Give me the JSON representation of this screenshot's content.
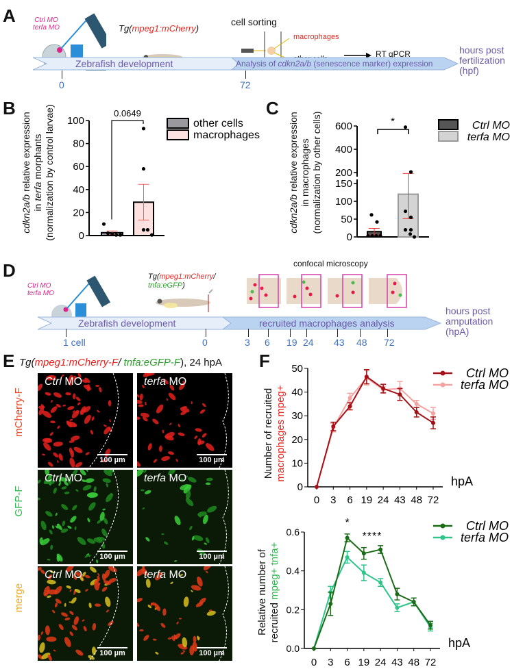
{
  "panelA": {
    "label": "A",
    "mo1": "Ctrl MO",
    "mo2": "terfa MO",
    "tg_prefix": "Tg(",
    "tg_gene": "mpeg1:mCherry",
    "tg_suffix": ")",
    "sorting": "cell sorting",
    "macrophages": "macrophages",
    "other": "other cells",
    "rtqpcr": "RT qPCR",
    "tl_left": "Zebrafish development",
    "tl_right_a": "Analysis of ",
    "tl_right_gene": "cdkn2a/b",
    "tl_right_b": " (senescence marker) expression",
    "unit1": "hours post",
    "unit2": "fertilization",
    "unit3": "(hpf)",
    "ticks": [
      "0",
      "72"
    ]
  },
  "panelB": {
    "label": "B",
    "ylabel1a": "cdkn2a/b",
    "ylabel1b": " relative expression",
    "ylabel2a": "in ",
    "ylabel2b": "terfa",
    "ylabel2c": " morphants",
    "ylabel3": "(normalization by control larvae)"
  },
  "panelC": {
    "label": "C",
    "ylabel1a": "cdkn2a/b",
    "ylabel1b": " relative expression",
    "ylabel2": "in macrophages",
    "ylabel3": "(normalization by other cells)"
  },
  "panelD": {
    "label": "D",
    "mo1": "Ctrl MO",
    "mo2": "terfa MO",
    "tg_prefix": "Tg(",
    "tg_gene1": "mpeg1:mCherry",
    "tg_sep": "/",
    "tg_gene2": "tnfa:eGFP",
    "tg_suffix": ")",
    "confocal": "confocal microscopy",
    "tl_left": "Zebrafish development",
    "tl_right": "recruited macrophages analysis",
    "unit1": "hours post",
    "unit2": "amputation",
    "unit3": "(hpA)",
    "ticks": [
      "1 cell",
      "0",
      "3",
      "6",
      "19",
      "24",
      "43",
      "48",
      "72"
    ]
  },
  "panelE": {
    "label": "E",
    "title_prefix": "Tg(",
    "title_gene1": "mpeg1:mCherry-F",
    "title_sep": "/ ",
    "title_gene2": "tnfa:eGFP-F",
    "title_suffix": "), 24 hpA",
    "rows": [
      "mCherry-F",
      "GFP-F",
      "merge"
    ],
    "col1_a": "Ctrl",
    "col1_b": " MO",
    "col2_a": "terfa",
    "col2_b": " MO",
    "scalebar": "100 µm"
  },
  "panelF": {
    "label": "F",
    "top_ylabel1": "Number of recruited",
    "top_ylabel2": "macrophages mpeg+",
    "bot_ylabel1": "Relative number of",
    "bot_ylabel2a": "recruited ",
    "bot_ylabel2b": "mpeg+ tnfa+"
  },
  "colors": {
    "red": "#e8241f",
    "green": "#2a9d2a",
    "ctrl_top": "#a50f15",
    "terfa_top": "#f4a3a0",
    "ctrl_bot": "#1a6b16",
    "terfa_bot": "#2ec48a",
    "tl_text": "#6a5aa8",
    "tick": "#3a6fc4"
  },
  "chart_data": [
    {
      "id": "B",
      "type": "bar",
      "ylim": [
        0,
        100
      ],
      "yticks": [
        "0",
        "20",
        "40",
        "60",
        "80",
        "100"
      ],
      "categories": [
        "other cells",
        "macrophages"
      ],
      "values": [
        2.5,
        29
      ],
      "sem": [
        1.5,
        15.5
      ],
      "points": [
        [
          10,
          2,
          1,
          0.5,
          0.5
        ],
        [
          93,
          58,
          5,
          5,
          0.5
        ]
      ],
      "fills": [
        "#9a9a9e",
        "#fde0e0"
      ],
      "annotation": "0.0649",
      "legend": [
        "other cells",
        "macrophages"
      ],
      "legend_position": "top-right"
    },
    {
      "id": "C",
      "type": "bar",
      "broken_axis": true,
      "ylim_lower": [
        0,
        150
      ],
      "ylim_upper": [
        200,
        600
      ],
      "yticks_lower": [
        "0",
        "50",
        "100",
        "150"
      ],
      "yticks_upper": [
        "200",
        "400",
        "600"
      ],
      "categories": [
        "Ctrl MO",
        "terfa MO"
      ],
      "values": [
        15,
        120
      ],
      "sem": [
        9,
        72
      ],
      "points": [
        [
          62,
          42,
          3,
          3,
          3,
          3,
          3
        ],
        [
          590,
          205,
          72,
          55,
          20,
          20,
          8,
          0
        ]
      ],
      "fills": [
        "#555555",
        "#d4d4d4"
      ],
      "annotation": "*",
      "legend": [
        "Ctrl MO",
        "terfa MO"
      ],
      "legend_position": "top-right"
    },
    {
      "id": "F-top",
      "type": "line",
      "x": [
        "0",
        "3",
        "6",
        "19",
        "24",
        "43",
        "48",
        "72"
      ],
      "xlabel": "hpA",
      "ylim": [
        0,
        50
      ],
      "yticks": [
        "0",
        "10",
        "20",
        "30",
        "40",
        "50"
      ],
      "series": [
        {
          "name": "Ctrl MO",
          "values": [
            0,
            25.5,
            34,
            46.5,
            41.5,
            39,
            31.5,
            27
          ],
          "err": [
            0,
            1.8,
            1.5,
            3,
            1.8,
            2.5,
            2,
            2.5
          ]
        },
        {
          "name": "terfa MO",
          "values": [
            0,
            25,
            37.5,
            46,
            41,
            41.5,
            35,
            31
          ],
          "err": [
            0,
            1.8,
            2,
            3,
            1.5,
            3,
            1.5,
            2.5
          ]
        }
      ],
      "legend_position": "top-right"
    },
    {
      "id": "F-bottom",
      "type": "line",
      "x": [
        "0",
        "3",
        "6",
        "19",
        "24",
        "43",
        "48",
        "72"
      ],
      "xlabel": "hpA",
      "ylim": [
        0,
        0.6
      ],
      "yticks": [
        "0.0",
        "0.2",
        "0.4",
        "0.6"
      ],
      "series": [
        {
          "name": "Ctrl MO",
          "values": [
            0,
            0.23,
            0.57,
            0.49,
            0.51,
            0.28,
            0.24,
            0.12
          ],
          "err": [
            0,
            0.06,
            0.02,
            0.03,
            0.02,
            0.03,
            0.02,
            0.02
          ]
        },
        {
          "name": "terfa MO",
          "values": [
            0,
            0.29,
            0.47,
            0.39,
            0.34,
            0.21,
            0.24,
            0.11
          ],
          "err": [
            0,
            0.03,
            0.03,
            0.04,
            0.02,
            0.02,
            0.02,
            0.02
          ]
        }
      ],
      "annotations": [
        "*",
        "****"
      ],
      "legend_position": "top-right"
    }
  ]
}
